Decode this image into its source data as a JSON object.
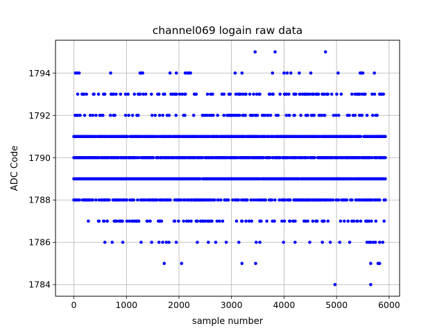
{
  "chart_data": {
    "type": "scatter",
    "title": "channel069 logain raw data",
    "xlabel": "sample number",
    "ylabel": "ADC Code",
    "xlim": [
      -350,
      6200
    ],
    "ylim": [
      1783.45,
      1795.55
    ],
    "xticks": [
      0,
      1000,
      2000,
      3000,
      4000,
      5000,
      6000
    ],
    "yticks": [
      1784,
      1786,
      1788,
      1790,
      1792,
      1794
    ],
    "grid": true,
    "marker_color": "#0000ff",
    "n_samples": 5940,
    "dense_levels": [
      1793,
      1792,
      1791,
      1790,
      1789,
      1788,
      1787
    ],
    "sparse_points": [
      {
        "y": 1795,
        "x": [
          3450,
          3830,
          4790
        ]
      },
      {
        "y": 1794,
        "x": [
          30,
          60,
          100,
          700,
          1260,
          1290,
          1310,
          1830,
          1950,
          2120,
          2160,
          2190,
          2220,
          3070,
          3200,
          3780,
          4000,
          4060,
          4130,
          4290,
          4510,
          5030,
          5450,
          5470,
          5500,
          5720
        ]
      },
      {
        "y": 1786,
        "x": [
          590,
          730,
          930,
          1280,
          1480,
          1620,
          1690,
          1760,
          1810,
          1950,
          2350,
          2560,
          2700,
          2900,
          3140,
          3470,
          3540,
          3990,
          4210,
          4490,
          4730,
          4880,
          5060,
          5250,
          5580,
          5620,
          5650,
          5700,
          5740,
          5820,
          5880
        ]
      },
      {
        "y": 1785,
        "x": [
          1720,
          2050,
          3200,
          3460,
          5650,
          5790,
          5820
        ]
      },
      {
        "y": 1784,
        "x": [
          4970,
          5650
        ]
      }
    ]
  }
}
